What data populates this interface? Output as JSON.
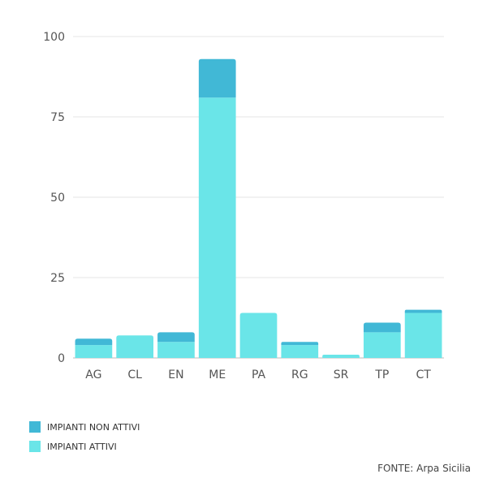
{
  "chart_data": {
    "type": "bar",
    "stacked": true,
    "categories": [
      "AG",
      "CL",
      "EN",
      "ME",
      "PA",
      "RG",
      "SR",
      "TP",
      "CT"
    ],
    "series": [
      {
        "name": "IMPIANTI ATTIVI",
        "color": "#6ae5e8",
        "values": [
          4,
          7,
          5,
          81,
          14,
          4,
          1,
          8,
          14
        ]
      },
      {
        "name": "IMPIANTI NON ATTIVI",
        "color": "#41b8d6",
        "values": [
          2,
          0,
          3,
          12,
          0,
          1,
          0,
          3,
          1
        ]
      }
    ],
    "ylim": [
      0,
      100
    ],
    "yticks": [
      "0",
      "25",
      "50",
      "75",
      "100"
    ],
    "grid": true,
    "legend_placement": "bottom-left"
  },
  "legend": {
    "items": [
      {
        "label": "IMPIANTI NON ATTIVI",
        "color": "#41b8d6"
      },
      {
        "label": "IMPIANTI ATTIVI",
        "color": "#6ae5e8"
      }
    ]
  },
  "source": "FONTE: Arpa Sicilia"
}
